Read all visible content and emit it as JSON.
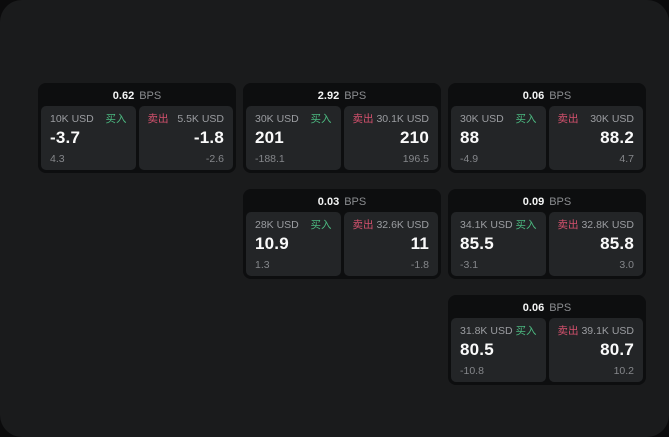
{
  "labels": {
    "bps_suffix": "BPS",
    "buy": "买入",
    "sell": "卖出"
  },
  "colors": {
    "page_bg": "#1a1b1c",
    "card_bg": "#0d0e0f",
    "panel_bg": "#232527",
    "buy_green": "#4cba81",
    "sell_red": "#d5516e",
    "text_primary": "#fafafa",
    "text_secondary": "#9b9da1"
  },
  "cards": [
    {
      "bps": "0.62",
      "buy": {
        "notional": "10K USD",
        "price": "-3.7",
        "change": "4.3"
      },
      "sell": {
        "notional": "5.5K USD",
        "price": "-1.8",
        "change": "-2.6"
      }
    },
    {
      "bps": "2.92",
      "buy": {
        "notional": "30K USD",
        "price": "201",
        "change": "-188.1"
      },
      "sell": {
        "notional": "30.1K USD",
        "price": "210",
        "change": "196.5"
      }
    },
    {
      "bps": "0.06",
      "buy": {
        "notional": "30K USD",
        "price": "88",
        "change": "-4.9"
      },
      "sell": {
        "notional": "30K USD",
        "price": "88.2",
        "change": "4.7"
      }
    },
    {
      "bps": "0.03",
      "buy": {
        "notional": "28K USD",
        "price": "10.9",
        "change": "1.3"
      },
      "sell": {
        "notional": "32.6K USD",
        "price": "11",
        "change": "-1.8"
      }
    },
    {
      "bps": "0.09",
      "buy": {
        "notional": "34.1K USD",
        "price": "85.5",
        "change": "-3.1"
      },
      "sell": {
        "notional": "32.8K USD",
        "price": "85.8",
        "change": "3.0"
      }
    },
    {
      "bps": "0.06",
      "buy": {
        "notional": "31.8K USD",
        "price": "80.5",
        "change": "-10.8"
      },
      "sell": {
        "notional": "39.1K USD",
        "price": "80.7",
        "change": "10.2"
      }
    }
  ]
}
